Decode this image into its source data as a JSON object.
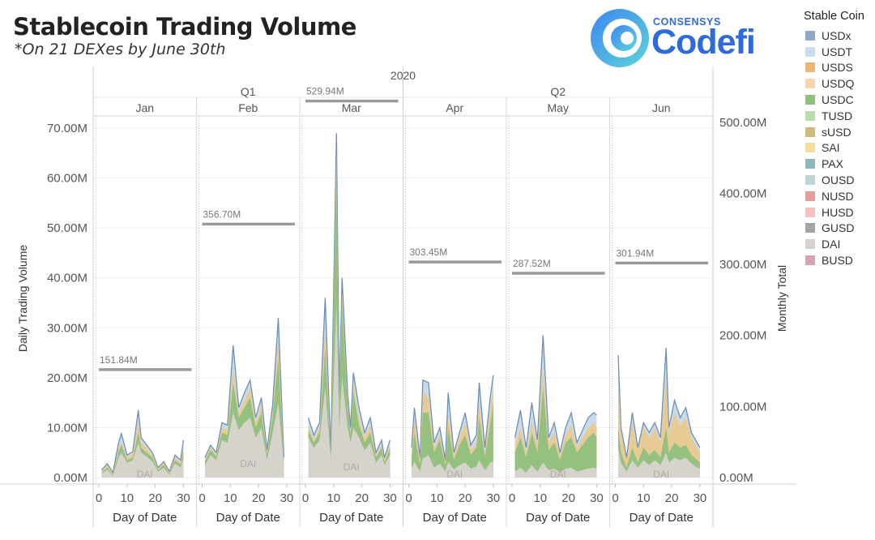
{
  "title": "Stablecoin Trading Volume",
  "subtitle": "*On 21 DEXes by June 30th",
  "logo": {
    "small": "CONSENSYS",
    "big": "Codefi"
  },
  "legend": {
    "title": "Stable Coin",
    "items": [
      {
        "label": "USDx",
        "color": "#8fa8c3"
      },
      {
        "label": "USDT",
        "color": "#c6dcee"
      },
      {
        "label": "USDS",
        "color": "#e7b574"
      },
      {
        "label": "USDQ",
        "color": "#f7d6ad"
      },
      {
        "label": "USDC",
        "color": "#8fbf7c"
      },
      {
        "label": "TUSD",
        "color": "#b8dcaa"
      },
      {
        "label": "sUSD",
        "color": "#cdb97c"
      },
      {
        "label": "SAI",
        "color": "#f1dd9c"
      },
      {
        "label": "PAX",
        "color": "#8db8b9"
      },
      {
        "label": "OUSD",
        "color": "#bdd6d5"
      },
      {
        "label": "NUSD",
        "color": "#e39c9a"
      },
      {
        "label": "HUSD",
        "color": "#f5c1c0"
      },
      {
        "label": "GUSD",
        "color": "#a5a3a3"
      },
      {
        "label": "DAI",
        "color": "#d7d2d0"
      },
      {
        "label": "BUSD",
        "color": "#d8a3b6"
      }
    ]
  },
  "chart_data": {
    "type": "area",
    "year_label": "2020",
    "quarters": [
      "Q1",
      "Q2"
    ],
    "months": [
      "Jan",
      "Feb",
      "Mar",
      "Apr",
      "May",
      "Jun"
    ],
    "xlabel": "Day of Date",
    "ylabel": "Daily Trading Volume",
    "y2label": "Monthly Total",
    "x_ticks": [
      "0",
      "10",
      "20",
      "30"
    ],
    "ylim": [
      0,
      70000000
    ],
    "y2lim": [
      0,
      550000000
    ],
    "y_ticks": [
      "0.00M",
      "10.00M",
      "20.00M",
      "30.00M",
      "40.00M",
      "50.00M",
      "60.00M",
      "70.00M"
    ],
    "y2_ticks": [
      "0.00M",
      "100.00M",
      "200.00M",
      "300.00M",
      "400.00M",
      "500.00M"
    ],
    "monthly_totals": [
      151.84,
      356.7,
      529.94,
      303.45,
      287.52,
      301.94
    ],
    "monthly_total_labels": [
      "151.84M",
      "356.70M",
      "529.94M",
      "303.45M",
      "287.52M",
      "301.94M"
    ],
    "area_label": "DAI",
    "panels": [
      {
        "month": "Jan",
        "days": [
          1,
          3,
          5,
          7,
          8,
          10,
          12,
          14,
          15,
          17,
          19,
          21,
          23,
          25,
          27,
          29,
          30
        ],
        "total": [
          1.5,
          2.8,
          1.0,
          7.0,
          8.8,
          4.5,
          5.2,
          13.5,
          8.0,
          6.5,
          5.0,
          2.0,
          3.2,
          1.2,
          4.5,
          3.5,
          7.5
        ],
        "usdt": [
          1.2,
          2.5,
          0.8,
          6.0,
          7.0,
          4.0,
          4.8,
          11.0,
          7.0,
          5.8,
          4.5,
          1.8,
          3.0,
          1.0,
          4.0,
          3.0,
          6.5
        ],
        "usdc": [
          1.0,
          2.0,
          0.5,
          5.2,
          6.5,
          3.5,
          4.0,
          9.0,
          6.0,
          5.0,
          4.0,
          1.5,
          2.6,
          0.8,
          3.5,
          2.6,
          5.5
        ],
        "dai": [
          0.8,
          1.6,
          0.4,
          4.0,
          5.0,
          3.0,
          3.5,
          7.0,
          5.0,
          4.2,
          3.2,
          1.2,
          2.0,
          0.6,
          2.8,
          2.0,
          4.0
        ]
      },
      {
        "month": "Feb",
        "days": [
          1,
          3,
          5,
          7,
          9,
          11,
          13,
          15,
          17,
          19,
          21,
          23,
          25,
          27,
          29
        ],
        "total": [
          4.0,
          6.5,
          5.0,
          11.0,
          10.5,
          26.5,
          14.0,
          17.0,
          19.5,
          12.0,
          16.0,
          5.5,
          14.5,
          32.0,
          4.0
        ],
        "usdt": [
          3.5,
          6.0,
          4.5,
          10.0,
          9.5,
          22.0,
          13.0,
          15.5,
          18.0,
          11.0,
          14.5,
          5.0,
          13.0,
          28.0,
          3.5
        ],
        "usdc": [
          3.2,
          5.5,
          4.2,
          9.0,
          8.5,
          19.0,
          12.0,
          14.0,
          16.0,
          10.0,
          13.0,
          4.5,
          12.0,
          24.0,
          3.0
        ],
        "dai": [
          2.5,
          4.5,
          3.5,
          7.5,
          7.0,
          13.0,
          9.5,
          11.0,
          12.0,
          8.0,
          10.0,
          3.5,
          9.0,
          15.0,
          2.5
        ]
      },
      {
        "month": "Mar",
        "days": [
          1,
          3,
          5,
          7,
          9,
          11,
          12,
          13,
          15,
          16,
          17,
          19,
          21,
          23,
          25,
          27,
          28,
          30
        ],
        "total": [
          12.0,
          8.5,
          11.0,
          36.0,
          5.0,
          69.0,
          16.0,
          40.0,
          16.5,
          10.0,
          21.0,
          14.0,
          9.0,
          12.0,
          5.0,
          7.5,
          4.0,
          7.5
        ],
        "usdt": [
          10.5,
          7.5,
          10.0,
          30.0,
          4.5,
          66.0,
          14.5,
          37.0,
          15.0,
          9.0,
          19.0,
          12.0,
          8.0,
          10.5,
          4.5,
          6.5,
          3.5,
          6.5
        ],
        "usdc": [
          9.5,
          7.0,
          9.0,
          26.0,
          4.0,
          62.0,
          13.0,
          35.0,
          14.0,
          8.5,
          17.0,
          10.5,
          7.0,
          9.0,
          4.0,
          6.0,
          3.0,
          6.0
        ],
        "dai": [
          8.0,
          6.0,
          7.5,
          18.0,
          3.5,
          35.0,
          10.0,
          20.0,
          10.0,
          7.0,
          10.0,
          8.0,
          5.5,
          7.0,
          3.0,
          4.5,
          2.5,
          4.5
        ]
      },
      {
        "month": "Apr",
        "days": [
          1,
          2,
          4,
          5,
          7,
          9,
          11,
          13,
          14,
          16,
          18,
          20,
          22,
          24,
          25,
          27,
          29,
          30
        ],
        "total": [
          6.0,
          14.0,
          4.0,
          19.5,
          19.0,
          7.0,
          10.0,
          3.5,
          17.0,
          5.0,
          9.0,
          13.0,
          6.5,
          8.5,
          19.0,
          6.0,
          16.5,
          20.5
        ],
        "usdt": [
          5.0,
          12.0,
          3.5,
          17.0,
          16.0,
          6.0,
          8.5,
          3.0,
          13.0,
          4.5,
          8.0,
          11.0,
          5.5,
          7.0,
          15.0,
          5.0,
          14.0,
          18.0
        ],
        "usdc": [
          4.0,
          9.0,
          2.5,
          13.0,
          13.0,
          5.0,
          7.5,
          2.5,
          10.0,
          3.5,
          6.5,
          8.5,
          4.5,
          6.0,
          12.0,
          4.0,
          11.0,
          15.0
        ],
        "dai": [
          1.8,
          3.2,
          1.2,
          3.8,
          4.5,
          2.0,
          2.8,
          1.2,
          3.2,
          1.6,
          2.5,
          3.0,
          1.8,
          2.2,
          3.5,
          1.5,
          3.0,
          3.2
        ]
      },
      {
        "month": "May",
        "days": [
          1,
          3,
          5,
          7,
          9,
          11,
          13,
          15,
          17,
          19,
          21,
          23,
          25,
          27,
          29,
          30
        ],
        "total": [
          8.0,
          13.5,
          6.0,
          15.0,
          7.5,
          28.5,
          8.0,
          11.0,
          5.0,
          10.0,
          13.0,
          7.0,
          9.5,
          12.0,
          13.0,
          12.5
        ],
        "usdt": [
          6.5,
          10.0,
          5.0,
          11.0,
          6.5,
          22.0,
          7.0,
          9.0,
          4.5,
          8.5,
          10.5,
          6.0,
          8.0,
          10.0,
          11.0,
          10.0
        ],
        "usdc": [
          5.0,
          8.0,
          4.0,
          9.0,
          5.0,
          18.0,
          5.5,
          7.0,
          3.5,
          7.0,
          8.0,
          5.0,
          6.5,
          8.0,
          9.0,
          8.0
        ],
        "dai": [
          1.2,
          2.0,
          1.0,
          2.5,
          1.2,
          3.0,
          1.5,
          1.8,
          1.0,
          1.8,
          2.0,
          1.2,
          1.5,
          1.8,
          2.0,
          1.8
        ]
      },
      {
        "month": "Jun",
        "days": [
          1,
          2,
          4,
          6,
          8,
          10,
          12,
          14,
          16,
          18,
          19,
          21,
          23,
          25,
          27,
          29,
          30
        ],
        "total": [
          24.5,
          10.0,
          4.0,
          13.0,
          6.0,
          11.0,
          9.0,
          11.0,
          8.0,
          26.0,
          10.0,
          15.5,
          12.0,
          14.0,
          9.0,
          7.0,
          6.0
        ],
        "usdt": [
          20.0,
          9.0,
          3.5,
          11.0,
          5.5,
          10.0,
          8.0,
          10.0,
          7.0,
          20.0,
          9.0,
          13.0,
          10.5,
          12.0,
          8.0,
          6.0,
          5.0
        ],
        "usdc": [
          10.0,
          5.0,
          2.0,
          6.0,
          3.0,
          6.0,
          4.5,
          5.5,
          4.0,
          10.0,
          5.0,
          7.0,
          6.0,
          6.5,
          4.5,
          3.5,
          3.0
        ],
        "dai": [
          6.0,
          3.0,
          1.2,
          3.5,
          2.0,
          3.5,
          2.5,
          3.5,
          2.5,
          5.0,
          3.0,
          4.0,
          3.5,
          4.0,
          2.8,
          2.0,
          1.8
        ]
      }
    ]
  }
}
